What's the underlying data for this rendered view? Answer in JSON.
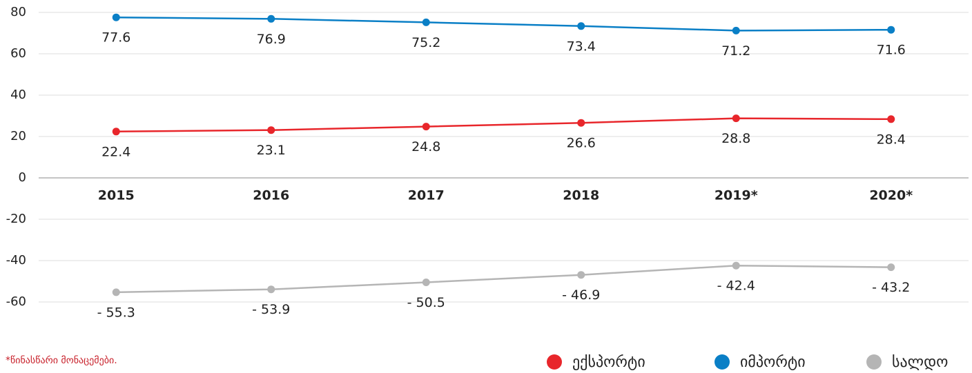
{
  "chart_data": {
    "type": "line",
    "categories": [
      "2015",
      "2016",
      "2017",
      "2018",
      "2019*",
      "2020*"
    ],
    "series": [
      {
        "name": "ექსპორტი",
        "color": "#e8262b",
        "values": [
          22.4,
          23.1,
          24.8,
          26.6,
          28.8,
          28.4
        ]
      },
      {
        "name": "იმპორტი",
        "color": "#0a7fc6",
        "values": [
          77.6,
          76.9,
          75.2,
          73.4,
          71.2,
          71.6
        ]
      },
      {
        "name": "სალდო",
        "color": "#b5b5b5",
        "values": [
          -55.3,
          -53.9,
          -50.5,
          -46.9,
          -42.4,
          -43.2
        ],
        "value_labels": [
          "- 55.3",
          "- 53.9",
          "- 50.5",
          "- 46.9",
          "- 42.4",
          "- 43.2"
        ]
      }
    ],
    "ylim": [
      -60,
      80
    ],
    "yticks": [
      -60,
      -40,
      -20,
      0,
      20,
      40,
      60,
      80
    ],
    "grid": true,
    "footnote": "*წინასწარი მონაცემები."
  }
}
